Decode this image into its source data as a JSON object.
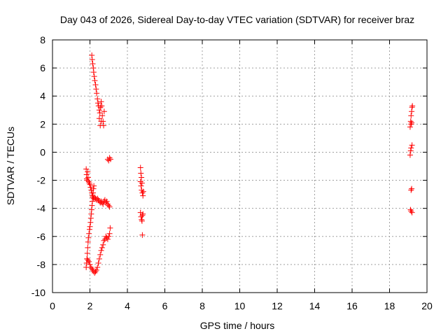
{
  "chart_data": {
    "type": "scatter",
    "title": "Day 043 of 2026, Sidereal Day-to-day VTEC variation (SDTVAR) for receiver braz",
    "xlabel": "GPS time / hours",
    "ylabel": "SDTVAR / TECUs",
    "xlim": [
      0,
      20
    ],
    "ylim": [
      -10,
      8
    ],
    "xticks": [
      "0",
      "2",
      "4",
      "6",
      "8",
      "10",
      "12",
      "14",
      "16",
      "18",
      "20"
    ],
    "yticks": [
      "-10",
      "-8",
      "-6",
      "-4",
      "-2",
      "0",
      "2",
      "4",
      "6",
      "8"
    ],
    "grid": true,
    "marker": "+",
    "color": "#ff0000",
    "series": [
      {
        "points": [
          [
            1.8,
            -1.2
          ],
          [
            1.82,
            -1.6
          ],
          [
            1.83,
            -1.9
          ],
          [
            1.85,
            -2.0
          ],
          [
            1.88,
            -1.4
          ],
          [
            1.9,
            -1.8
          ],
          [
            1.93,
            -2.1
          ],
          [
            1.97,
            -2.2
          ],
          [
            2.0,
            -2.3
          ],
          [
            2.03,
            -2.5
          ],
          [
            2.07,
            -2.7
          ],
          [
            2.1,
            -2.9
          ],
          [
            2.13,
            -3.1
          ],
          [
            2.17,
            -3.2
          ],
          [
            2.2,
            -3.3
          ],
          [
            2.25,
            -3.2
          ],
          [
            2.3,
            -3.3
          ],
          [
            2.35,
            -3.4
          ],
          [
            2.4,
            -3.3
          ],
          [
            2.45,
            -3.4
          ],
          [
            2.5,
            -3.5
          ],
          [
            2.55,
            -3.6
          ],
          [
            2.6,
            -3.5
          ],
          [
            2.65,
            -3.6
          ],
          [
            2.7,
            -3.7
          ],
          [
            2.75,
            -3.5
          ],
          [
            2.8,
            -3.4
          ],
          [
            2.85,
            -3.6
          ],
          [
            2.9,
            -3.5
          ],
          [
            2.95,
            -3.7
          ],
          [
            3.0,
            -3.8
          ],
          [
            3.05,
            -3.9
          ]
        ]
      },
      {
        "points": [
          [
            1.8,
            -8.2
          ],
          [
            1.82,
            -7.9
          ],
          [
            1.84,
            -7.6
          ],
          [
            1.86,
            -7.2
          ],
          [
            1.88,
            -6.8
          ],
          [
            1.9,
            -6.4
          ],
          [
            1.92,
            -6.1
          ],
          [
            1.95,
            -5.8
          ],
          [
            1.98,
            -5.5
          ],
          [
            2.0,
            -5.3
          ],
          [
            2.03,
            -5.0
          ],
          [
            2.05,
            -4.7
          ],
          [
            2.07,
            -4.4
          ],
          [
            2.09,
            -4.1
          ],
          [
            2.11,
            -3.8
          ],
          [
            2.13,
            -3.5
          ],
          [
            2.15,
            -3.2
          ],
          [
            2.17,
            -2.9
          ],
          [
            2.19,
            -2.6
          ],
          [
            2.21,
            -2.4
          ]
        ]
      },
      {
        "points": [
          [
            1.85,
            -7.6
          ],
          [
            1.9,
            -7.7
          ],
          [
            1.95,
            -7.8
          ],
          [
            2.0,
            -8.0
          ],
          [
            2.05,
            -8.2
          ],
          [
            2.1,
            -8.3
          ],
          [
            2.15,
            -8.4
          ],
          [
            2.2,
            -8.5
          ],
          [
            2.25,
            -8.6
          ],
          [
            2.3,
            -8.5
          ],
          [
            2.35,
            -8.4
          ],
          [
            2.4,
            -8.2
          ],
          [
            2.45,
            -7.9
          ],
          [
            2.5,
            -7.6
          ],
          [
            2.55,
            -7.3
          ],
          [
            2.6,
            -7.0
          ],
          [
            2.65,
            -6.8
          ],
          [
            2.7,
            -6.6
          ],
          [
            2.75,
            -6.3
          ],
          [
            2.8,
            -6.2
          ],
          [
            2.85,
            -6.0
          ],
          [
            2.9,
            -6.1
          ],
          [
            2.95,
            -6.2
          ],
          [
            3.0,
            -6.0
          ],
          [
            3.05,
            -5.8
          ],
          [
            3.08,
            -5.4
          ]
        ]
      },
      {
        "points": [
          [
            2.1,
            6.9
          ],
          [
            2.12,
            6.6
          ],
          [
            2.15,
            6.3
          ],
          [
            2.18,
            6.0
          ],
          [
            2.2,
            5.7
          ],
          [
            2.23,
            5.4
          ],
          [
            2.26,
            5.1
          ],
          [
            2.3,
            4.8
          ],
          [
            2.33,
            4.5
          ],
          [
            2.36,
            4.2
          ],
          [
            2.4,
            3.8
          ],
          [
            2.43,
            3.5
          ],
          [
            2.46,
            3.3
          ],
          [
            2.5,
            3.0
          ],
          [
            2.53,
            2.8
          ],
          [
            2.56,
            3.2
          ],
          [
            2.6,
            3.6
          ],
          [
            2.63,
            3.3
          ],
          [
            2.66,
            2.6
          ],
          [
            2.7,
            2.2
          ],
          [
            2.73,
            1.9
          ],
          [
            2.76,
            2.9
          ],
          [
            2.5,
            2.4
          ],
          [
            2.55,
            1.9
          ],
          [
            2.6,
            2.2
          ]
        ]
      },
      {
        "points": [
          [
            2.95,
            -0.5
          ],
          [
            3.0,
            -0.6
          ],
          [
            3.05,
            -0.4
          ],
          [
            3.1,
            -0.5
          ]
        ]
      },
      {
        "points": [
          [
            4.7,
            -1.1
          ],
          [
            4.72,
            -1.5
          ],
          [
            4.75,
            -1.8
          ],
          [
            4.7,
            -2.1
          ],
          [
            4.73,
            -2.4
          ],
          [
            4.76,
            -2.7
          ],
          [
            4.8,
            -2.9
          ],
          [
            4.83,
            -3.1
          ],
          [
            4.78,
            -2.2
          ],
          [
            4.85,
            -2.8
          ],
          [
            4.7,
            -4.3
          ],
          [
            4.73,
            -4.6
          ],
          [
            4.76,
            -4.8
          ],
          [
            4.8,
            -4.5
          ],
          [
            4.83,
            -4.4
          ],
          [
            4.78,
            -4.9
          ],
          [
            4.8,
            -5.9
          ]
        ]
      },
      {
        "points": [
          [
            19.1,
            1.8
          ],
          [
            19.13,
            2.2
          ],
          [
            19.15,
            2.6
          ],
          [
            19.18,
            2.9
          ],
          [
            19.2,
            3.2
          ],
          [
            19.22,
            3.3
          ],
          [
            19.15,
            2.0
          ],
          [
            19.18,
            2.1
          ],
          [
            19.1,
            -0.2
          ],
          [
            19.13,
            0.1
          ],
          [
            19.15,
            0.3
          ],
          [
            19.2,
            0.5
          ],
          [
            19.15,
            -2.7
          ],
          [
            19.18,
            -2.6
          ],
          [
            19.12,
            -4.1
          ],
          [
            19.15,
            -4.2
          ],
          [
            19.2,
            -4.3
          ]
        ]
      }
    ]
  }
}
